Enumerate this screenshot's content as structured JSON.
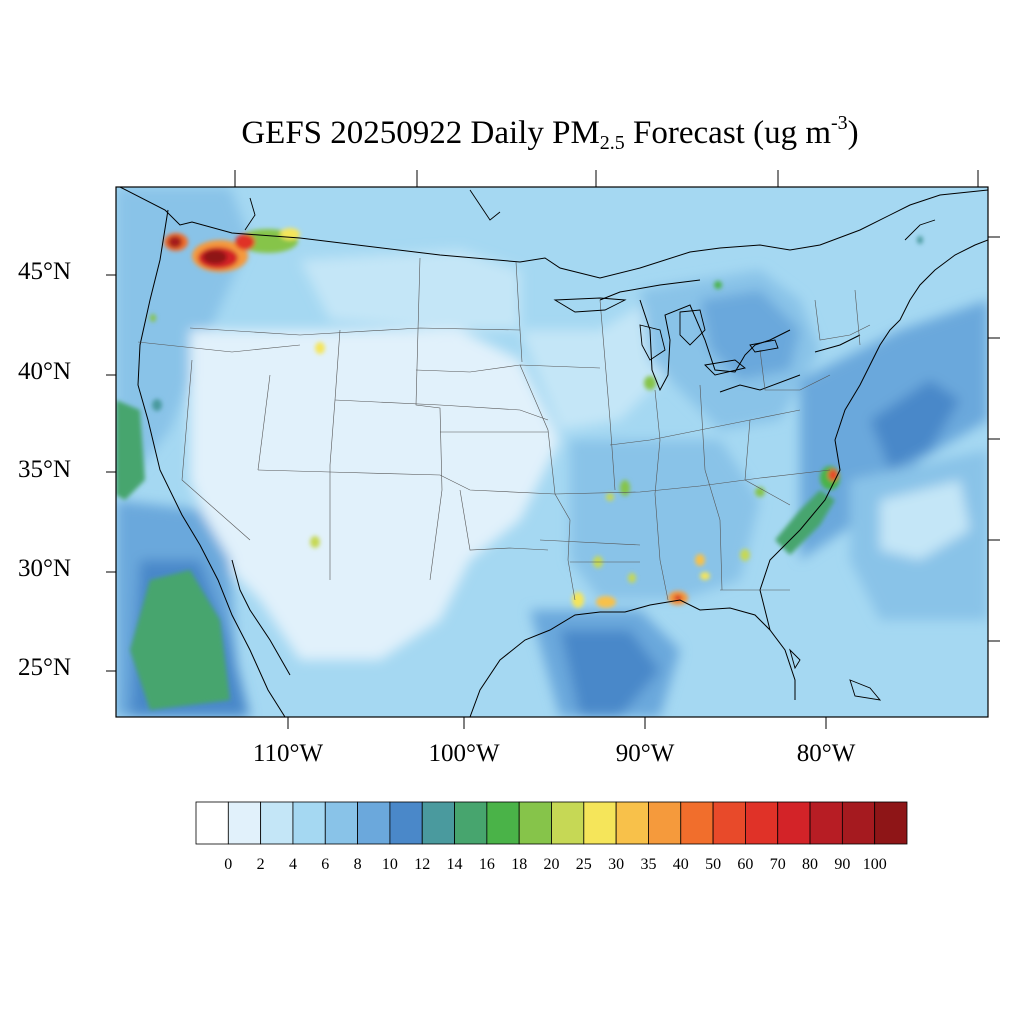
{
  "title": {
    "text": "GEFS 20250922 Daily PM",
    "subscript": "2.5",
    "suffix": " Forecast (ug m",
    "superscript": "-3",
    "close": ")"
  },
  "map": {
    "lat_labels": [
      "45°N",
      "40°N",
      "35°N",
      "30°N",
      "25°N"
    ],
    "lon_labels": [
      "110°W",
      "100°W",
      "90°W",
      "80°W"
    ]
  },
  "colorbar": {
    "labels": [
      "0",
      "2",
      "4",
      "6",
      "8",
      "10",
      "12",
      "14",
      "16",
      "18",
      "20",
      "25",
      "30",
      "35",
      "40",
      "50",
      "60",
      "70",
      "80",
      "90",
      "100"
    ],
    "colors": [
      "#ffffff",
      "#e1f1fb",
      "#c4e6f7",
      "#a5d8f2",
      "#89c3e8",
      "#6ba8dc",
      "#4a88c9",
      "#4a9a9e",
      "#47a56e",
      "#4ab348",
      "#86c44a",
      "#c6d855",
      "#f5e55a",
      "#f8c14a",
      "#f59a3c",
      "#f16e2c",
      "#e84a2a",
      "#e03228",
      "#d32328",
      "#b71d24",
      "#a51a1f",
      "#8e1517"
    ]
  }
}
